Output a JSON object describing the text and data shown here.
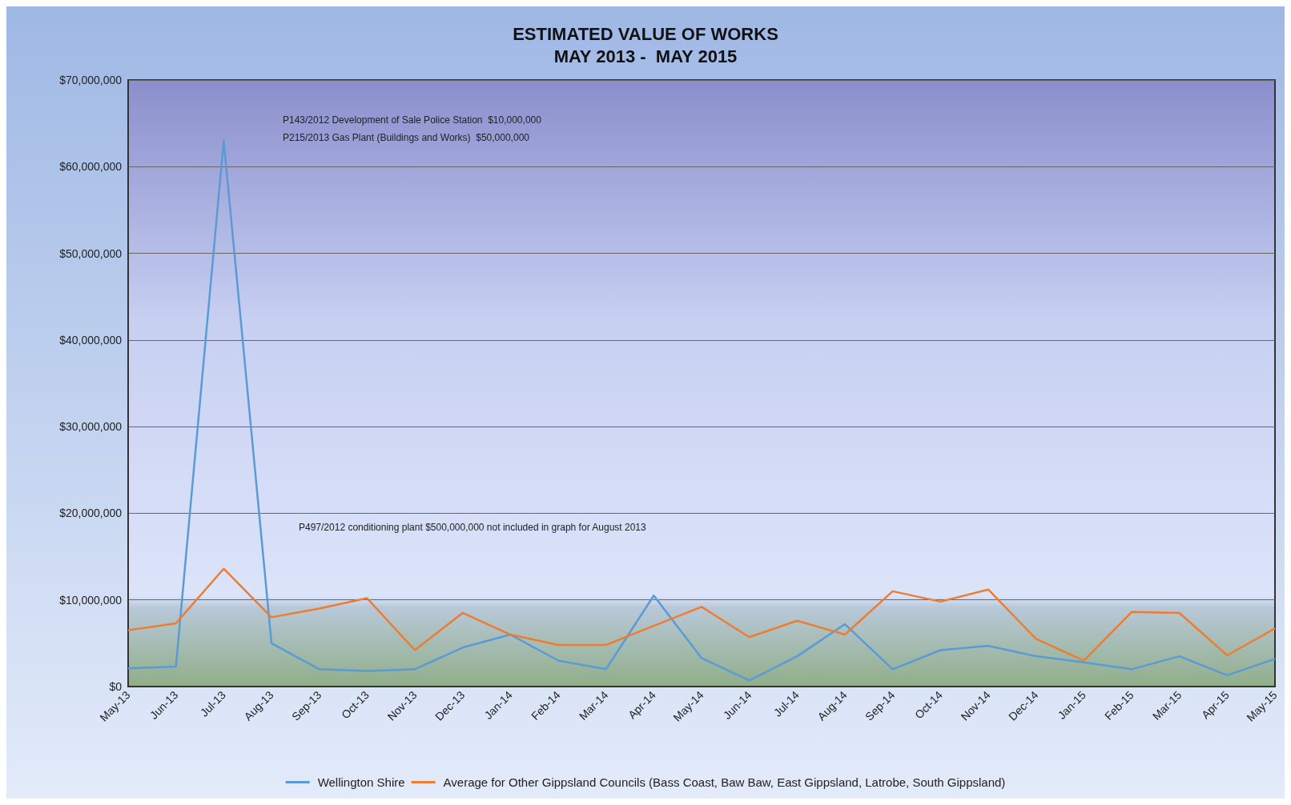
{
  "chart_data": {
    "type": "line",
    "title": "ESTIMATED VALUE OF WORKS",
    "subtitle": "MAY 2013 -  MAY 2015",
    "categories": [
      "May-13",
      "Jun-13",
      "Jul-13",
      "Aug-13",
      "Sep-13",
      "Oct-13",
      "Nov-13",
      "Dec-13",
      "Jan-14",
      "Feb-14",
      "Mar-14",
      "Apr-14",
      "May-14",
      "Jun-14",
      "Jul-14",
      "Aug-14",
      "Sep-14",
      "Oct-14",
      "Nov-14",
      "Dec-14",
      "Jan-15",
      "Feb-15",
      "Mar-15",
      "Apr-15",
      "May-15"
    ],
    "series": [
      {
        "name": "Wellington Shire",
        "color": "#5b9bd5",
        "values": [
          2100000,
          2300000,
          63000000,
          5000000,
          2000000,
          1800000,
          2000000,
          4500000,
          6000000,
          3000000,
          2000000,
          10500000,
          3300000,
          700000,
          3500000,
          7200000,
          2000000,
          4200000,
          4700000,
          3500000,
          2800000,
          2000000,
          3500000,
          1300000,
          3200000
        ]
      },
      {
        "name": "Average for Other Gippsland Councils (Bass Coast, Baw Baw, East Gippsland, Latrobe, South Gippsland)",
        "color": "#ed7d31",
        "values": [
          6500000,
          7300000,
          13600000,
          8000000,
          9000000,
          10200000,
          4200000,
          8500000,
          6000000,
          4800000,
          4800000,
          7000000,
          9200000,
          5700000,
          7600000,
          6000000,
          11000000,
          9800000,
          11200000,
          5500000,
          3000000,
          8600000,
          8500000,
          3600000,
          6700000
        ]
      }
    ],
    "ylim": [
      0,
      70000000
    ],
    "yticks": [
      {
        "value": 0,
        "label": "$0"
      },
      {
        "value": 10000000,
        "label": "$10,000,000"
      },
      {
        "value": 20000000,
        "label": "$20,000,000"
      },
      {
        "value": 30000000,
        "label": "$30,000,000"
      },
      {
        "value": 40000000,
        "label": "$40,000,000"
      },
      {
        "value": 50000000,
        "label": "$50,000,000"
      },
      {
        "value": 60000000,
        "label": "$60,000,000"
      },
      {
        "value": 70000000,
        "label": "$70,000,000"
      }
    ],
    "grid": "y",
    "legend": "bottom",
    "marker": "none",
    "line_style": "solid",
    "annotations": [
      "P143/2012 Development of Sale Police Station  $10,000,000",
      "P215/2013 Gas Plant (Buildings and Works)  $50,000,000",
      "P497/2012 conditioning plant $500,000,000 not included in graph for August 2013"
    ]
  }
}
